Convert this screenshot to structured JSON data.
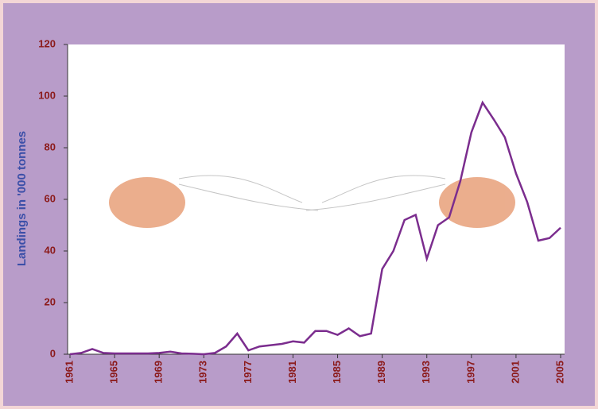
{
  "chart_data": {
    "type": "line",
    "ylabel": "Landings in '000 tonnes",
    "x": [
      1961,
      1962,
      1963,
      1964,
      1965,
      1966,
      1967,
      1968,
      1969,
      1970,
      1971,
      1972,
      1973,
      1974,
      1975,
      1976,
      1977,
      1978,
      1979,
      1980,
      1981,
      1982,
      1983,
      1984,
      1985,
      1986,
      1987,
      1988,
      1989,
      1990,
      1991,
      1992,
      1993,
      1994,
      1995,
      1996,
      1997,
      1998,
      1999,
      2000,
      2001,
      2002,
      2003,
      2004,
      2005
    ],
    "series": [
      {
        "name": "Landings",
        "color": "#7b2d8e",
        "values": [
          0,
          0.5,
          2,
          0.5,
          0.3,
          0.3,
          0.3,
          0.3,
          0.5,
          1,
          0.3,
          0.2,
          0,
          0.5,
          3,
          8,
          1.5,
          3,
          3.5,
          4,
          5,
          4.5,
          9,
          9,
          7.5,
          10,
          7,
          8,
          33,
          40,
          52,
          54,
          37,
          50,
          53,
          67,
          86,
          97.5,
          91,
          84,
          70,
          59,
          44,
          45,
          49
        ]
      }
    ],
    "xlim": [
      1961,
      2005
    ],
    "xticks": [
      1961,
      1965,
      1969,
      1973,
      1977,
      1981,
      1985,
      1989,
      1993,
      1997,
      2001,
      2005
    ],
    "ylim": [
      0,
      120
    ],
    "yticks": [
      0,
      20,
      40,
      60,
      80,
      100,
      120
    ]
  }
}
